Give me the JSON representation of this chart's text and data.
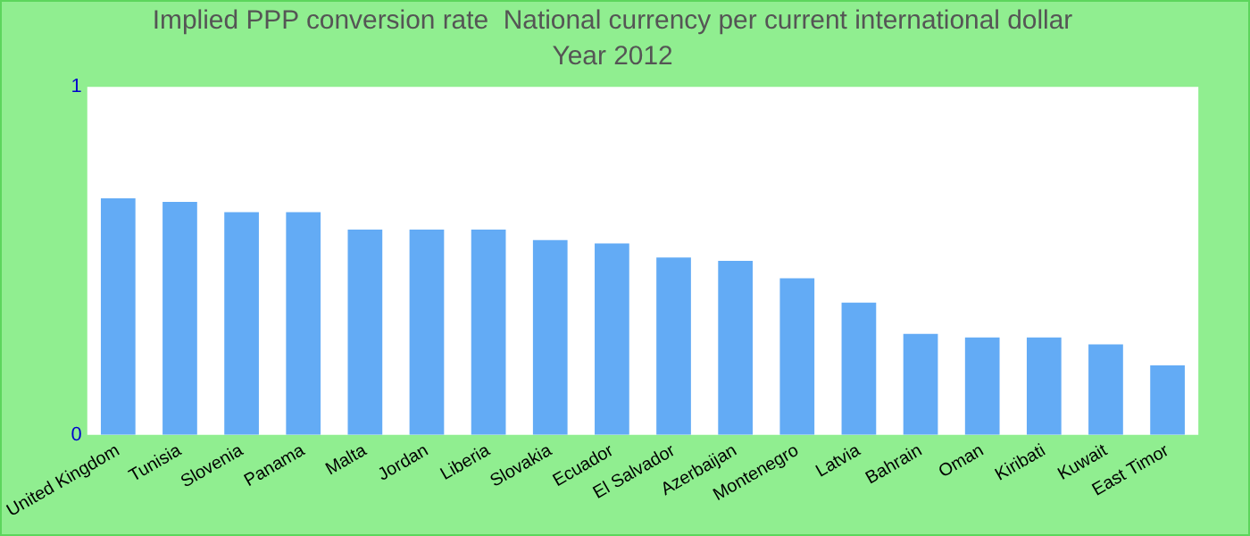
{
  "chart_data": {
    "type": "bar",
    "title": "Implied PPP conversion rate  National currency per current international dollar",
    "subtitle": "Year 2012",
    "categories": [
      "United Kingdom",
      "Tunisia",
      "Slovenia",
      "Panama",
      "Malta",
      "Jordan",
      "Liberia",
      "Slovakia",
      "Ecuador",
      "El Salvador",
      "Azerbaijan",
      "Montenegro",
      "Latvia",
      "Bahrain",
      "Oman",
      "Kiribati",
      "Kuwait",
      "East Timor"
    ],
    "values": [
      0.68,
      0.67,
      0.64,
      0.64,
      0.59,
      0.59,
      0.59,
      0.56,
      0.55,
      0.51,
      0.5,
      0.45,
      0.38,
      0.29,
      0.28,
      0.28,
      0.26,
      0.2
    ],
    "color": "#63abf5",
    "ylim": [
      0,
      1
    ],
    "yticks": [
      0,
      1
    ],
    "grid": false,
    "legend": false
  }
}
